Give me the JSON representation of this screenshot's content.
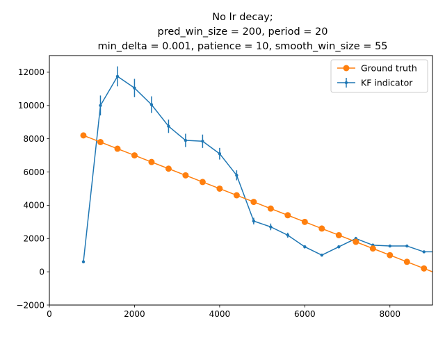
{
  "chart_data": {
    "type": "line",
    "title_lines": [
      "No lr decay;",
      "pred_win_size = 200, period = 20",
      "min_delta = 0.001, patience = 10, smooth_win_size = 55"
    ],
    "xlabel": "",
    "ylabel": "",
    "xlim": [
      0,
      9000
    ],
    "ylim": [
      -2000,
      13000
    ],
    "xticks": [
      0,
      2000,
      4000,
      6000,
      8000
    ],
    "xtick_labels": [
      "0",
      "2000",
      "4000",
      "6000",
      "8000"
    ],
    "yticks": [
      -2000,
      0,
      2000,
      4000,
      6000,
      8000,
      10000,
      12000
    ],
    "ytick_labels": [
      "−2000",
      "0",
      "2000",
      "4000",
      "6000",
      "8000",
      "10000",
      "12000"
    ],
    "legend_position": "top-right",
    "grid": false,
    "series": [
      {
        "name": "Ground truth",
        "color": "#ff7f0e",
        "marker": "circle",
        "x": [
          800,
          1200,
          1600,
          2000,
          2400,
          2800,
          3200,
          3600,
          4000,
          4400,
          4800,
          5200,
          5600,
          6000,
          6400,
          6800,
          7200,
          7600,
          8000,
          8400,
          8800,
          9200
        ],
        "y": [
          8200,
          7800,
          7400,
          7000,
          6600,
          6200,
          5800,
          5400,
          5000,
          4600,
          4200,
          3800,
          3400,
          3000,
          2600,
          2200,
          1800,
          1400,
          1000,
          600,
          200,
          -200
        ]
      },
      {
        "name": "KF indicator",
        "color": "#1f77b4",
        "marker": "point",
        "x": [
          800,
          1200,
          1600,
          2000,
          2400,
          2800,
          3200,
          3600,
          4000,
          4400,
          4800,
          5200,
          5600,
          6000,
          6400,
          6800,
          7200,
          7600,
          8000,
          8400,
          8800,
          9200
        ],
        "y": [
          600,
          10000,
          11750,
          11050,
          10050,
          8750,
          7900,
          7850,
          7100,
          5800,
          3050,
          2700,
          2200,
          1500,
          1000,
          1500,
          2000,
          1600,
          1550,
          1550,
          1200,
          1200
        ],
        "yerr": [
          0,
          600,
          600,
          550,
          500,
          400,
          400,
          400,
          350,
          300,
          200,
          200,
          150,
          100,
          0,
          100,
          100,
          100,
          0,
          0,
          0,
          0
        ]
      }
    ]
  }
}
